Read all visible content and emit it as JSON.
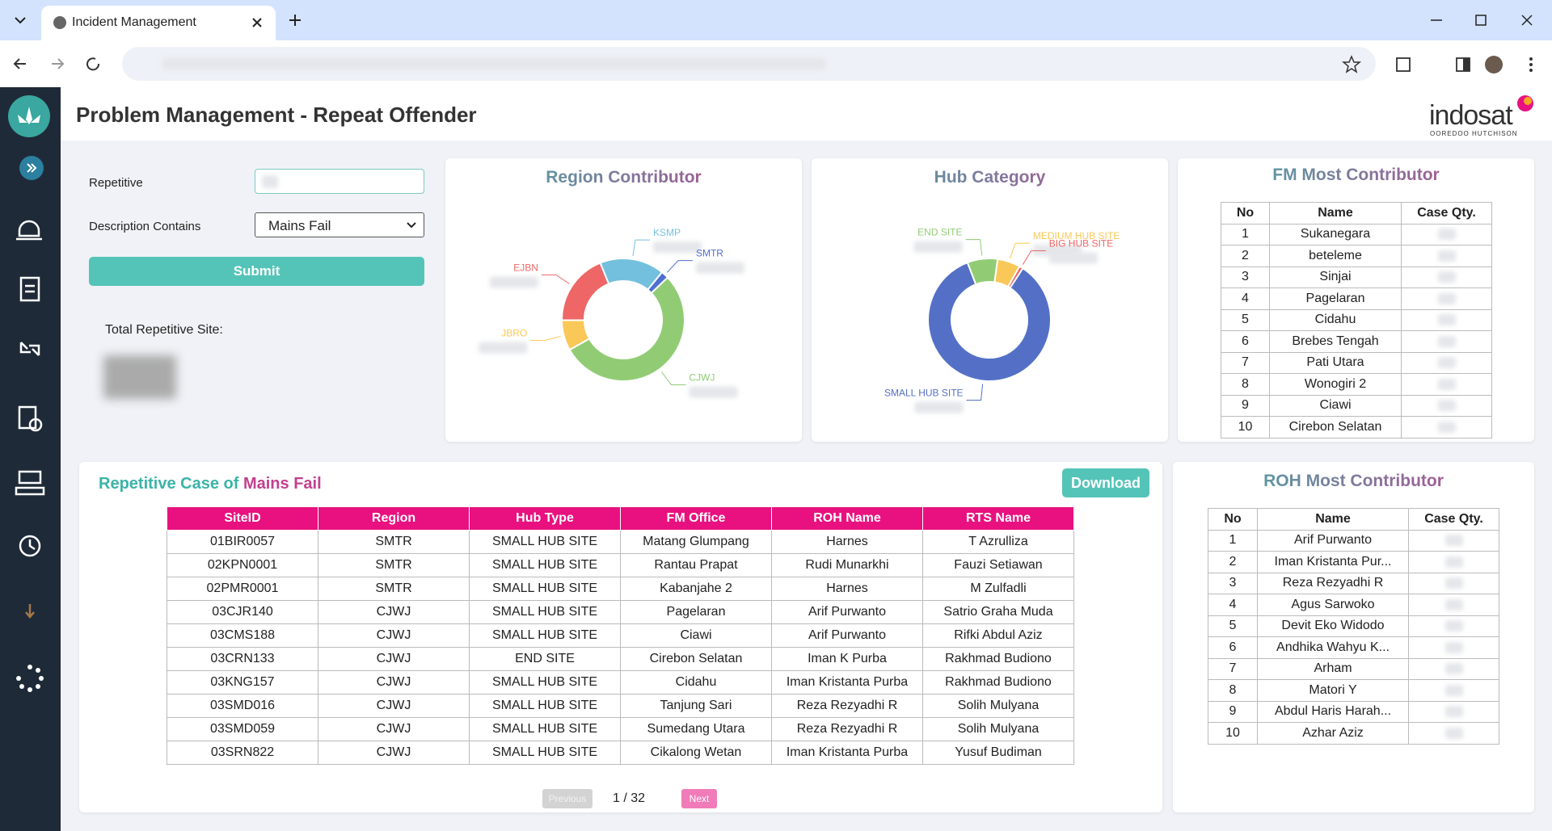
{
  "browser": {
    "tab_title": "Incident Management"
  },
  "header": {
    "title": "Problem Management - Repeat Offender",
    "logo": "indosat",
    "logo_sub": "OOREDOO HUTCHISON"
  },
  "form": {
    "repetitive_label": "Repetitive",
    "description_label": "Description Contains",
    "description_value": "Mains Fail",
    "submit": "Submit",
    "total_label": "Total Repetitive Site:"
  },
  "region_chart": {
    "type": "donut",
    "title": "Region Contributor",
    "categories": [
      "KSMP",
      "SMTR",
      "CJWJ",
      "JBRO",
      "EJBN"
    ],
    "values": [
      17,
      2,
      54,
      8,
      19
    ],
    "colors": [
      "#73c0de",
      "#4f6fd1",
      "#91cc75",
      "#fac858",
      "#ee6666"
    ]
  },
  "hub_chart": {
    "type": "donut",
    "title": "Hub Category",
    "categories": [
      "END SITE",
      "MEDIUM HUB SITE",
      "BIG HUB SITE",
      "SMALL HUB SITE"
    ],
    "values": [
      8,
      6,
      1,
      85
    ],
    "colors": [
      "#91cc75",
      "#fac858",
      "#ee6666",
      "#5470c6"
    ]
  },
  "fm_table": {
    "title": "FM Most Contributor",
    "columns": [
      "No",
      "Name",
      "Case Qty."
    ],
    "rows": [
      [
        "1",
        "Sukanegara"
      ],
      [
        "2",
        "beteleme"
      ],
      [
        "3",
        "Sinjai"
      ],
      [
        "4",
        "Pagelaran"
      ],
      [
        "5",
        "Cidahu"
      ],
      [
        "6",
        "Brebes Tengah"
      ],
      [
        "7",
        "Pati Utara"
      ],
      [
        "8",
        "Wonogiri 2"
      ],
      [
        "9",
        "Ciawi"
      ],
      [
        "10",
        "Cirebon Selatan"
      ]
    ]
  },
  "roh_table": {
    "title": "ROH Most Contributor",
    "columns": [
      "No",
      "Name",
      "Case Qty."
    ],
    "rows": [
      [
        "1",
        "Arif Purwanto"
      ],
      [
        "2",
        "Iman Kristanta Pur..."
      ],
      [
        "3",
        "Reza Rezyadhi R"
      ],
      [
        "4",
        "Agus Sarwoko"
      ],
      [
        "5",
        "Devit Eko Widodo"
      ],
      [
        "6",
        "Andhika Wahyu K..."
      ],
      [
        "7",
        "Arham"
      ],
      [
        "8",
        "Matori Y"
      ],
      [
        "9",
        "Abdul Haris Harah..."
      ],
      [
        "10",
        "Azhar Aziz"
      ]
    ]
  },
  "case_table": {
    "title_prefix": "Repetitive Case of",
    "title_highlight": "Mains Fail",
    "download": "Download",
    "columns": [
      "SiteID",
      "Region",
      "Hub Type",
      "FM Office",
      "ROH Name",
      "RTS Name"
    ],
    "rows": [
      [
        "01BIR0057",
        "SMTR",
        "SMALL HUB SITE",
        "Matang Glumpang",
        "Harnes",
        "T Azrulliza"
      ],
      [
        "02KPN0001",
        "SMTR",
        "SMALL HUB SITE",
        "Rantau Prapat",
        "Rudi Munarkhi",
        "Fauzi Setiawan"
      ],
      [
        "02PMR0001",
        "SMTR",
        "SMALL HUB SITE",
        "Kabanjahe 2",
        "Harnes",
        "M Zulfadli"
      ],
      [
        "03CJR140",
        "CJWJ",
        "SMALL HUB SITE",
        "Pagelaran",
        "Arif Purwanto",
        "Satrio Graha Muda"
      ],
      [
        "03CMS188",
        "CJWJ",
        "SMALL HUB SITE",
        "Ciawi",
        "Arif Purwanto",
        "Rifki Abdul Aziz"
      ],
      [
        "03CRN133",
        "CJWJ",
        "END SITE",
        "Cirebon Selatan",
        "Iman K Purba",
        "Rakhmad Budiono"
      ],
      [
        "03KNG157",
        "CJWJ",
        "SMALL HUB SITE",
        "Cidahu",
        "Iman Kristanta Purba",
        "Rakhmad Budiono"
      ],
      [
        "03SMD016",
        "CJWJ",
        "SMALL HUB SITE",
        "Tanjung Sari",
        "Reza Rezyadhi R",
        "Solih Mulyana"
      ],
      [
        "03SMD059",
        "CJWJ",
        "SMALL HUB SITE",
        "Sumedang Utara",
        "Reza Rezyadhi R",
        "Solih Mulyana"
      ],
      [
        "03SRN822",
        "CJWJ",
        "SMALL HUB SITE",
        "Cikalong Wetan",
        "Iman Kristanta Purba",
        "Yusuf Budiman"
      ]
    ],
    "pagination": {
      "previous": "Previous",
      "page": "1 / 32",
      "next": "Next"
    }
  }
}
